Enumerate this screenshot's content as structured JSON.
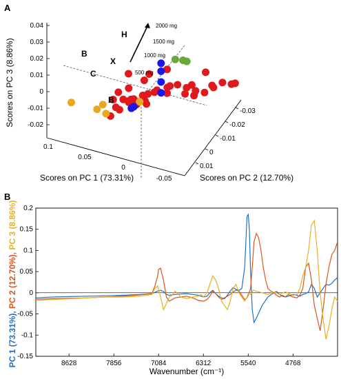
{
  "chart_data": [
    {
      "panel": "A",
      "type": "scatter",
      "xlabel": "Scores on PC 1 (73.31%)",
      "ylabel": "Scores on PC 2 (12.70%)",
      "zlabel": "Scores on PC 3 (8.86%)",
      "x_ticks": [
        "0.1",
        "0.05",
        "0",
        "-0.05"
      ],
      "y_ticks": [
        "-0.03",
        "-0.02",
        "-0.01",
        "0",
        "0.01"
      ],
      "z_ticks": [
        "0.04",
        "0.03",
        "0.02",
        "0.01",
        "0",
        "-0.01",
        "-0.02"
      ],
      "series": [
        {
          "color": "#e0191c",
          "points": [
            [
              0.01,
              0.0,
              0.01
            ],
            [
              0.015,
              -0.005,
              0.005
            ],
            [
              0.005,
              -0.01,
              0.0
            ],
            [
              0.0,
              -0.012,
              0.002
            ],
            [
              -0.005,
              -0.015,
              0.004
            ],
            [
              -0.01,
              -0.018,
              0.006
            ],
            [
              -0.015,
              -0.02,
              0.003
            ],
            [
              -0.02,
              -0.022,
              0.0
            ],
            [
              -0.025,
              -0.024,
              -0.002
            ],
            [
              -0.03,
              -0.026,
              0.001
            ],
            [
              -0.035,
              -0.028,
              0.004
            ],
            [
              -0.04,
              -0.03,
              0.002
            ],
            [
              -0.045,
              -0.028,
              -0.001
            ],
            [
              0.005,
              -0.006,
              -0.004
            ],
            [
              0.01,
              -0.004,
              -0.006
            ],
            [
              0.012,
              -0.002,
              -0.008
            ],
            [
              0.008,
              0.0,
              -0.01
            ],
            [
              0.004,
              -0.002,
              -0.012
            ],
            [
              0.0,
              -0.004,
              -0.014
            ],
            [
              0.015,
              0.002,
              -0.016
            ],
            [
              0.02,
              0.004,
              -0.02
            ],
            [
              -0.01,
              -0.01,
              -0.006
            ],
            [
              -0.02,
              -0.014,
              -0.008
            ],
            [
              -0.025,
              -0.016,
              -0.01
            ],
            [
              0.002,
              -0.008,
              0.012
            ],
            [
              -0.008,
              -0.012,
              0.014
            ],
            [
              0.012,
              -0.014,
              0.016
            ],
            [
              -0.002,
              -0.02,
              0.01
            ],
            [
              -0.03,
              -0.02,
              0.008
            ],
            [
              0.018,
              -0.008,
              -0.002
            ],
            [
              0.014,
              -0.01,
              -0.004
            ],
            [
              0.016,
              -0.012,
              0.0
            ],
            [
              -0.015,
              -0.024,
              0.008
            ],
            [
              -0.035,
              -0.02,
              -0.004
            ],
            [
              0.006,
              -0.016,
              0.006
            ],
            [
              0.02,
              -0.002,
              0.002
            ],
            [
              0.022,
              0.0,
              -0.004
            ],
            [
              0.01,
              0.004,
              -0.012
            ],
            [
              -0.005,
              0.002,
              -0.018
            ],
            [
              0.024,
              -0.004,
              -0.006
            ]
          ]
        },
        {
          "color": "#1e16e8",
          "points": [
            [
              0.005,
              -0.02,
              0.008
            ],
            [
              0.005,
              -0.02,
              0.016
            ],
            [
              0.005,
              -0.02,
              0.024
            ],
            [
              0.005,
              -0.02,
              0.03
            ],
            [
              0.018,
              -0.01,
              -0.005
            ],
            [
              0.014,
              -0.008,
              -0.007
            ]
          ]
        },
        {
          "color": "#e8a820",
          "points": [
            [
              0.06,
              -0.005,
              0.014
            ],
            [
              0.045,
              -0.01,
              0.006
            ],
            [
              0.04,
              -0.012,
              0.002
            ],
            [
              0.03,
              -0.028,
              0.018
            ],
            [
              0.025,
              0.005,
              -0.01
            ]
          ]
        },
        {
          "color": "#6aa83a",
          "points": [
            [
              0.0,
              -0.026,
              0.035
            ],
            [
              -0.004,
              -0.028,
              0.034
            ],
            [
              -0.006,
              -0.029,
              0.033
            ]
          ]
        }
      ],
      "annotations": {
        "letters": [
          "H",
          "B",
          "X",
          "C",
          "B"
        ],
        "doses": [
          "2000 mg",
          "1500 mg",
          "1000 mg",
          "500 mg"
        ]
      }
    },
    {
      "panel": "B",
      "type": "line",
      "xlabel": "Wavenumber (cm⁻¹)",
      "ylabel_parts": [
        "PC 1 (73.31%)",
        ", ",
        "PC 2 (12.70%)",
        ", ",
        "PC 3 (8.86%)"
      ],
      "x_ticks": [
        8628,
        7856,
        7084,
        6312,
        5540,
        4768
      ],
      "xlim": [
        9200,
        4000
      ],
      "ylim": [
        -0.15,
        0.2
      ],
      "y_ticks": [
        "0.2",
        "0.15",
        "0.1",
        "0.05",
        "0",
        "-0.05",
        "-0.1",
        "-0.15"
      ],
      "series": [
        {
          "name": "PC 1 (73.31%)",
          "color": "#1f70c1",
          "x": [
            9200,
            8900,
            8600,
            8300,
            8000,
            7700,
            7400,
            7200,
            7100,
            7050,
            7000,
            6950,
            6900,
            6800,
            6700,
            6600,
            6500,
            6400,
            6312,
            6250,
            6200,
            6150,
            6100,
            6050,
            6000,
            5950,
            5900,
            5850,
            5800,
            5750,
            5700,
            5650,
            5600,
            5580,
            5560,
            5540,
            5520,
            5500,
            5470,
            5440,
            5400,
            5350,
            5300,
            5250,
            5200,
            5150,
            5100,
            5050,
            5000,
            4950,
            4900,
            4850,
            4800,
            4768,
            4700,
            4650,
            4600,
            4550,
            4500,
            4450,
            4400,
            4350,
            4300,
            4250,
            4200,
            4150,
            4100,
            4050,
            4000
          ],
          "y": [
            -0.012,
            -0.01,
            -0.009,
            -0.008,
            -0.007,
            -0.006,
            -0.004,
            -0.002,
            0.004,
            0.006,
            0.003,
            -0.004,
            -0.006,
            -0.004,
            -0.003,
            -0.002,
            -0.004,
            -0.006,
            -0.01,
            -0.008,
            0.0,
            0.006,
            -0.002,
            -0.008,
            -0.012,
            -0.014,
            -0.006,
            0.004,
            0.012,
            0.008,
            0.006,
            0.01,
            0.06,
            0.12,
            0.18,
            0.185,
            0.15,
            0.05,
            -0.04,
            -0.07,
            -0.06,
            -0.045,
            -0.03,
            -0.02,
            -0.01,
            -0.005,
            0.0,
            0.003,
            -0.004,
            -0.008,
            -0.01,
            -0.008,
            -0.006,
            -0.004,
            -0.006,
            -0.008,
            -0.004,
            -0.002,
            0.002,
            0.02,
            0.01,
            -0.01,
            0.0,
            0.01,
            0.02,
            0.018,
            0.022,
            0.03,
            0.036
          ]
        },
        {
          "name": "PC 2 (12.70%)",
          "color": "#d95319",
          "x": [
            9200,
            8900,
            8600,
            8300,
            8000,
            7700,
            7400,
            7200,
            7150,
            7100,
            7084,
            7050,
            7000,
            6950,
            6900,
            6850,
            6800,
            6700,
            6600,
            6500,
            6400,
            6312,
            6250,
            6200,
            6150,
            6100,
            6050,
            6000,
            5950,
            5900,
            5850,
            5800,
            5750,
            5700,
            5650,
            5600,
            5560,
            5540,
            5500,
            5470,
            5440,
            5400,
            5360,
            5320,
            5280,
            5240,
            5200,
            5150,
            5100,
            5050,
            5000,
            4950,
            4900,
            4850,
            4800,
            4768,
            4700,
            4650,
            4600,
            4550,
            4500,
            4450,
            4400,
            4350,
            4300,
            4250,
            4200,
            4150,
            4100,
            4050,
            4000
          ],
          "y": [
            -0.015,
            -0.014,
            -0.013,
            -0.012,
            -0.01,
            -0.008,
            -0.005,
            -0.002,
            0.015,
            0.04,
            0.055,
            0.058,
            0.03,
            -0.01,
            -0.02,
            -0.016,
            -0.012,
            -0.01,
            -0.008,
            -0.012,
            -0.018,
            -0.02,
            -0.016,
            -0.008,
            0.004,
            -0.002,
            -0.01,
            -0.016,
            -0.012,
            -0.008,
            -0.004,
            0.002,
            0.006,
            0.004,
            -0.006,
            -0.016,
            -0.012,
            -0.006,
            0.01,
            0.06,
            0.12,
            0.14,
            0.13,
            0.1,
            0.06,
            0.03,
            0.01,
            0.004,
            0.0,
            -0.006,
            -0.01,
            -0.006,
            -0.01,
            -0.004,
            -0.008,
            -0.01,
            -0.012,
            -0.006,
            0.01,
            0.06,
            0.07,
            0.03,
            -0.03,
            -0.06,
            -0.09,
            -0.04,
            0.02,
            0.06,
            0.09,
            0.1,
            0.12
          ]
        },
        {
          "name": "PC 3 (8.86%)",
          "color": "#e8b020",
          "x": [
            9200,
            8900,
            8600,
            8300,
            8000,
            7700,
            7400,
            7200,
            7150,
            7100,
            7050,
            7000,
            6950,
            6900,
            6850,
            6800,
            6700,
            6600,
            6500,
            6400,
            6350,
            6312,
            6250,
            6200,
            6150,
            6100,
            6050,
            6000,
            5950,
            5900,
            5850,
            5800,
            5750,
            5700,
            5650,
            5600,
            5560,
            5540,
            5500,
            5450,
            5400,
            5300,
            5200,
            5100,
            5000,
            4900,
            4800,
            4768,
            4700,
            4650,
            4600,
            4550,
            4500,
            4450,
            4400,
            4350,
            4300,
            4250,
            4200,
            4150,
            4100,
            4050,
            4000
          ],
          "y": [
            -0.018,
            -0.016,
            -0.014,
            -0.012,
            -0.01,
            -0.01,
            -0.008,
            -0.004,
            0.01,
            0.016,
            -0.01,
            -0.04,
            -0.025,
            -0.01,
            -0.006,
            0.004,
            -0.01,
            -0.014,
            -0.01,
            -0.008,
            -0.004,
            -0.01,
            0.0,
            0.02,
            0.04,
            0.03,
            0.01,
            -0.02,
            -0.03,
            -0.04,
            -0.02,
            0.01,
            0.02,
            0.0,
            -0.01,
            -0.02,
            -0.01,
            -0.002,
            -0.004,
            0.006,
            0.004,
            0.0,
            -0.004,
            0.002,
            -0.004,
            0.002,
            -0.004,
            -0.006,
            -0.004,
            0.01,
            0.04,
            0.06,
            0.1,
            0.16,
            0.17,
            0.1,
            0.0,
            -0.06,
            -0.11,
            -0.08,
            -0.04,
            -0.01,
            -0.02
          ]
        }
      ]
    }
  ]
}
